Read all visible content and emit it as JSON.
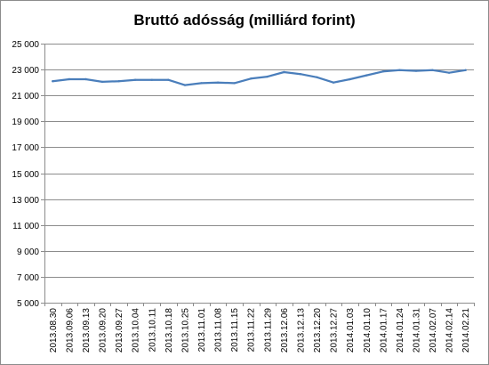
{
  "chart_data": {
    "type": "line",
    "title": "Bruttó adósság (milliárd forint)",
    "xlabel": "",
    "ylabel": "",
    "ylim": [
      5000,
      25000
    ],
    "y_ticks": [
      5000,
      7000,
      9000,
      11000,
      13000,
      15000,
      17000,
      19000,
      21000,
      23000,
      25000
    ],
    "y_tick_labels": [
      "5 000",
      "7 000",
      "9 000",
      "11 000",
      "13 000",
      "15 000",
      "17 000",
      "19 000",
      "21 000",
      "23 000",
      "25 000"
    ],
    "grid": "horizontal",
    "legend": "none",
    "line_color": "#4a7ebb",
    "categories": [
      "2013.08.30",
      "2013.09.06",
      "2013.09.13",
      "2013.09.20",
      "2013.09.27",
      "2013.10.04",
      "2013.10.11",
      "2013.10.18",
      "2013.10.25",
      "2013.11.01",
      "2013.11.08",
      "2013.11.15",
      "2013.11.22",
      "2013.11.29",
      "2013.12.06",
      "2013.12.13",
      "2013.12.20",
      "2013.12.27",
      "2014.01.03",
      "2014.01.10",
      "2014.01.17",
      "2014.01.24",
      "2014.01.31",
      "2014.02.07",
      "2014.02.14",
      "2014.02.21"
    ],
    "series": [
      {
        "values": [
          22100,
          22250,
          22250,
          22050,
          22100,
          22200,
          22200,
          22200,
          21800,
          21950,
          22000,
          21950,
          22300,
          22450,
          22800,
          22650,
          22400,
          22000,
          22250,
          22550,
          22850,
          22950,
          22900,
          22950,
          22750,
          22950
        ]
      }
    ]
  }
}
